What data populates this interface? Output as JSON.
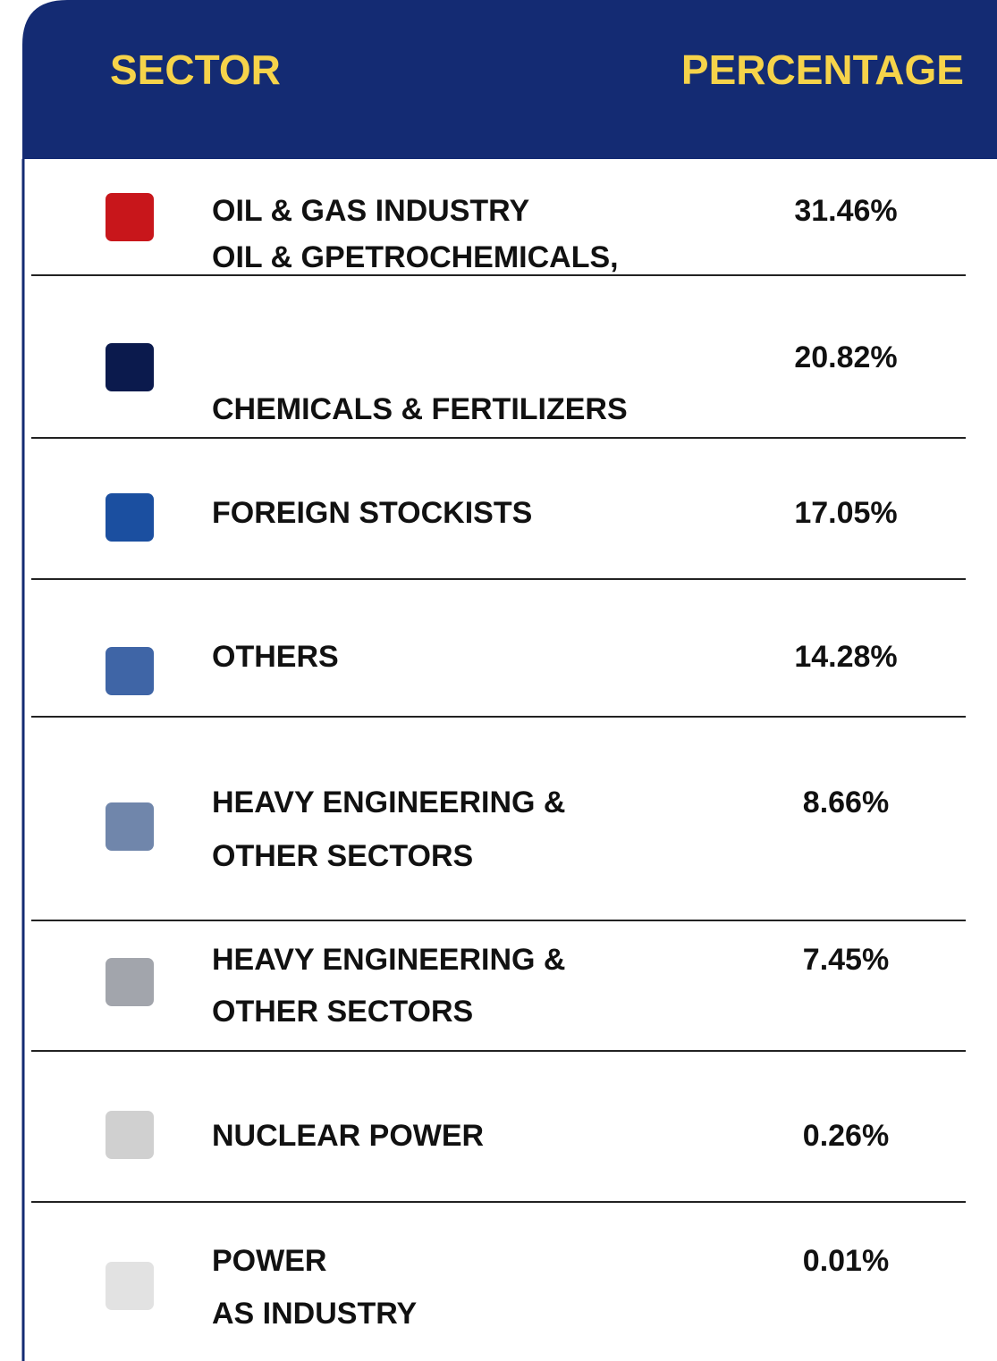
{
  "header": {
    "columns": [
      "SECTOR",
      "PERCENTAGE"
    ]
  },
  "table": {
    "rows": [
      {
        "label": [
          "OIL & GAS INDUSTRY"
        ],
        "percentage": "31.46%",
        "color": "#c8161b"
      },
      {
        "label": [
          "OIL & GPETROCHEMICALS,",
          "CHEMICALS & FERTILIZERS"
        ],
        "percentage": "20.82%",
        "color": "#0b1a4d"
      },
      {
        "label": [
          "FOREIGN STOCKISTS"
        ],
        "percentage": "17.05%",
        "color": "#1b4fa0"
      },
      {
        "label": [
          "OTHERS"
        ],
        "percentage": "14.28%",
        "color": "#3f65a6"
      },
      {
        "label": [
          "HEAVY ENGINEERING &",
          "OTHER SECTORS"
        ],
        "percentage": "8.66%",
        "color": "#7086ab"
      },
      {
        "label": [
          "HEAVY ENGINEERING &",
          "OTHER SECTORS"
        ],
        "percentage": "7.45%",
        "color": "#a2a5ac"
      },
      {
        "label": [
          "NUCLEAR POWER"
        ],
        "percentage": "0.26%",
        "color": "#d0d0d0"
      },
      {
        "label": [
          "POWER",
          "AS INDUSTRY"
        ],
        "percentage": "0.01%",
        "color": "#e2e2e2"
      }
    ]
  }
}
